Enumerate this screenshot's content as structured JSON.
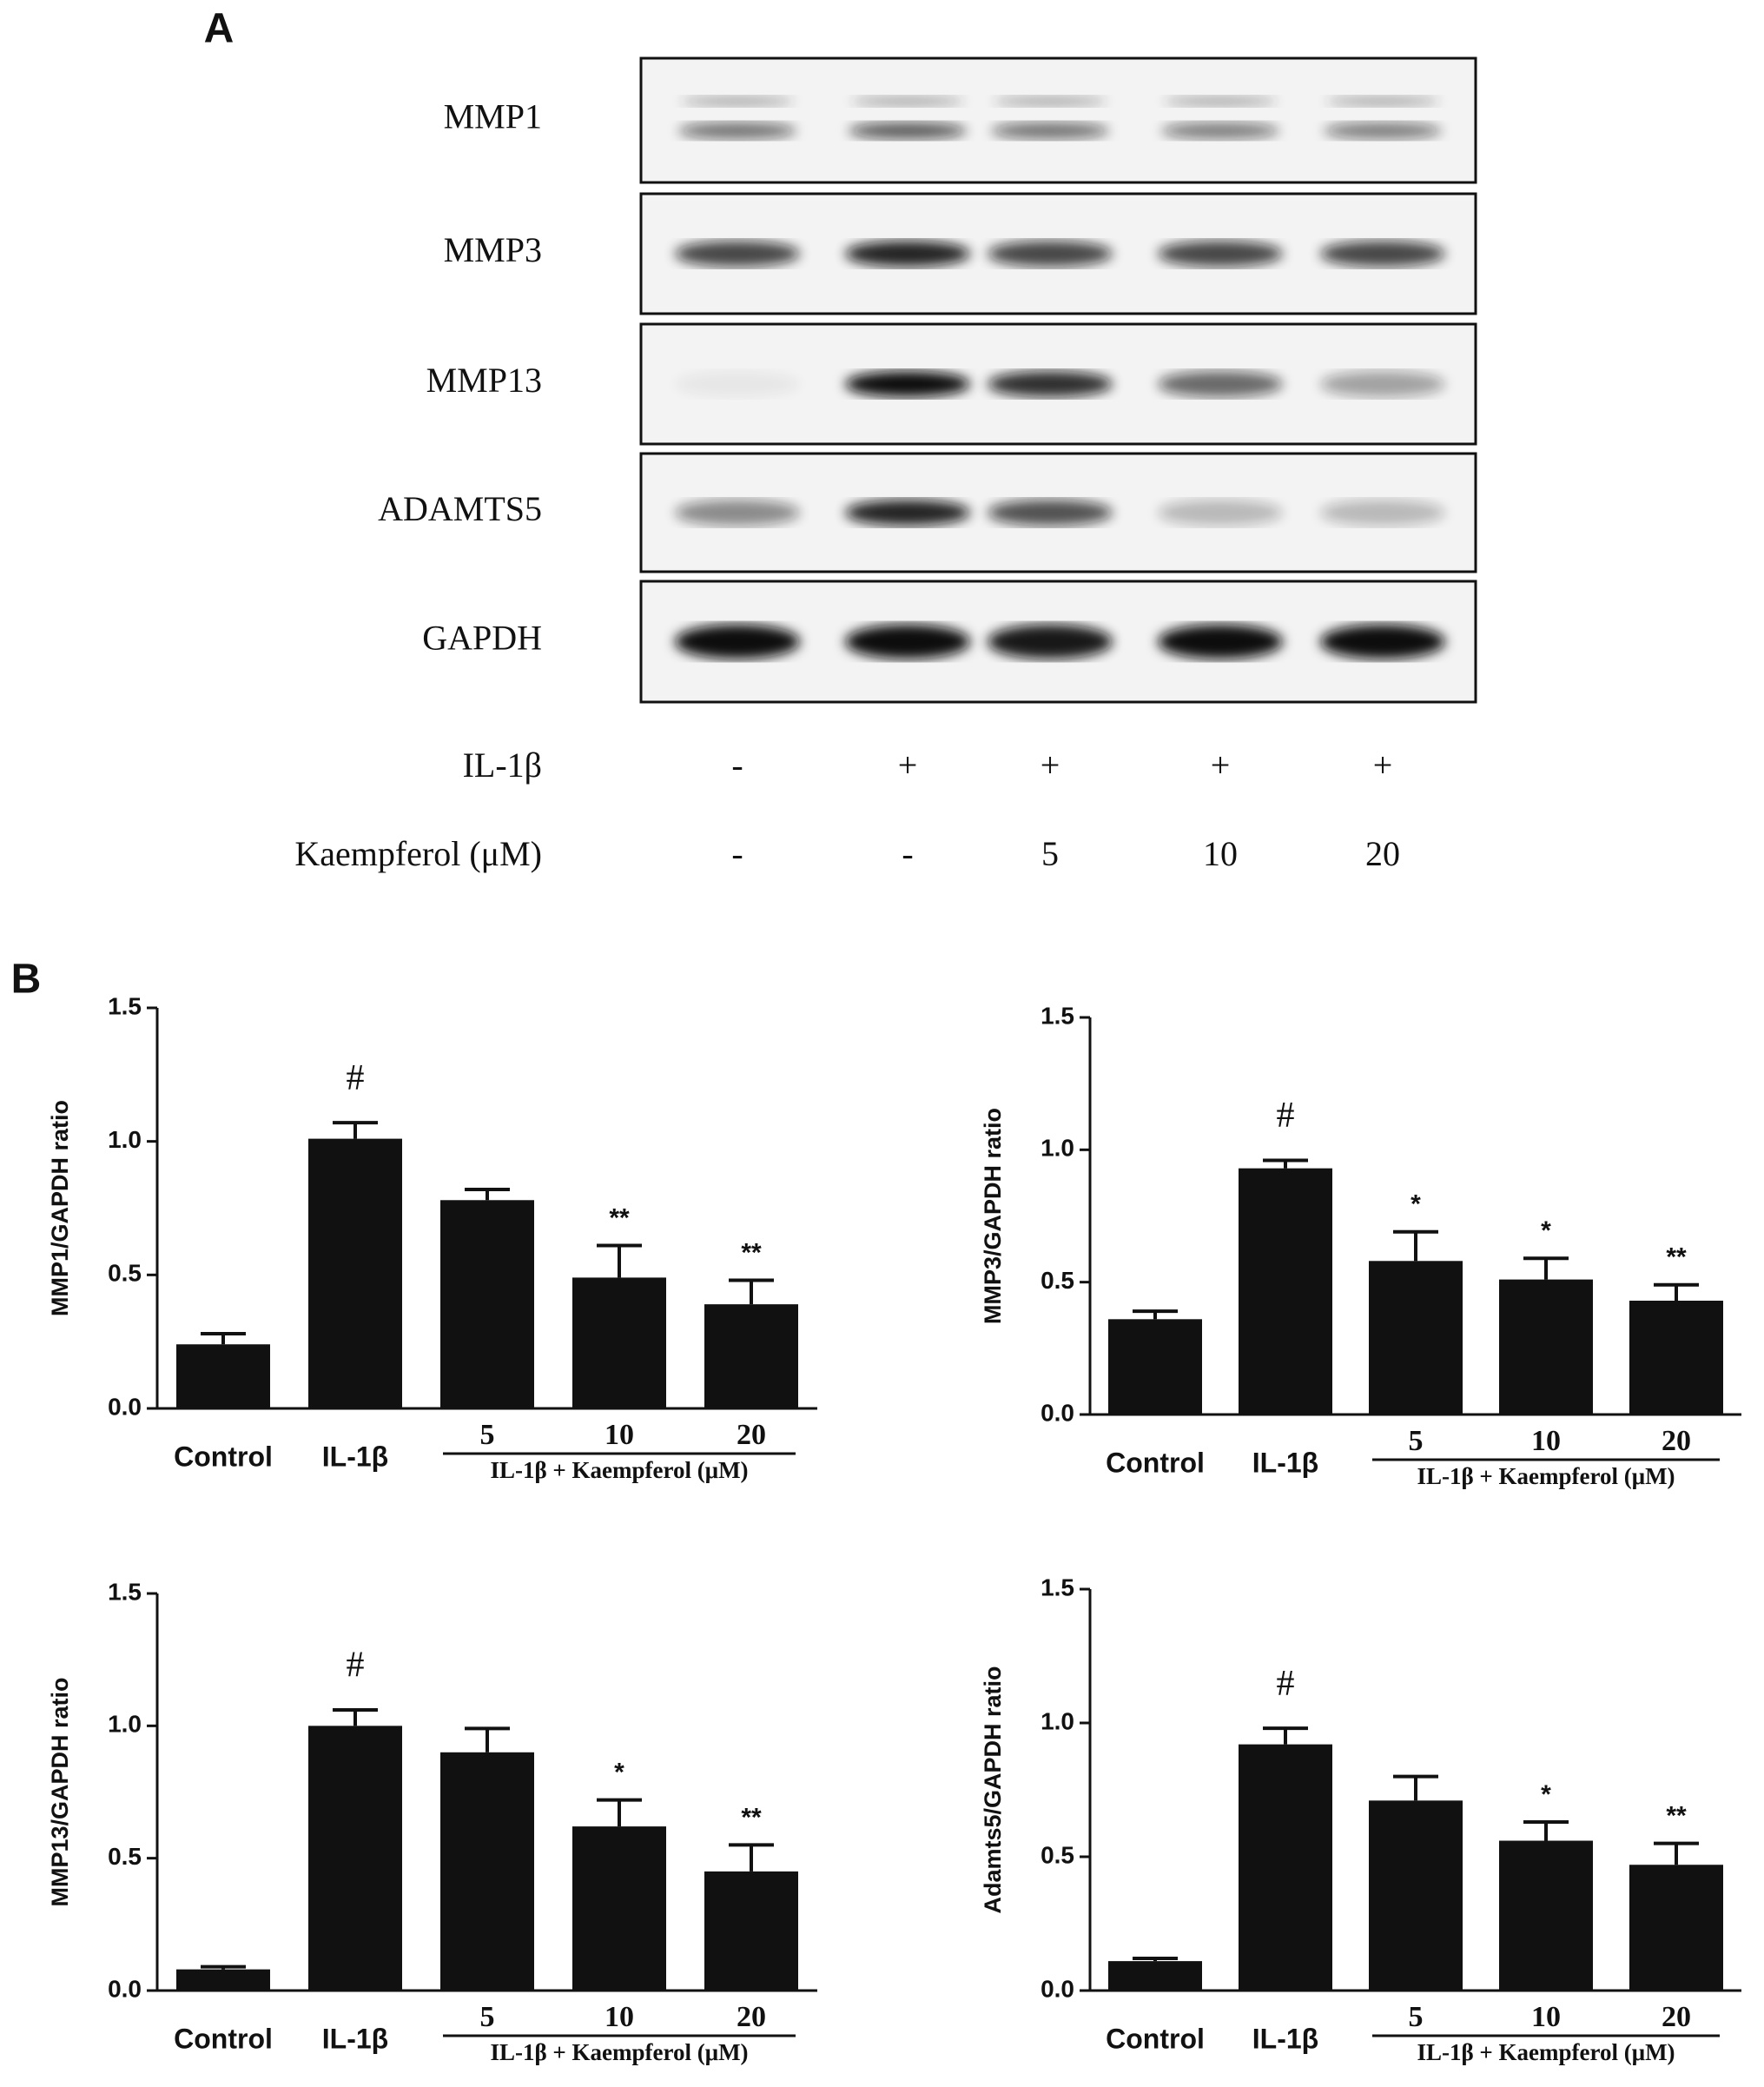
{
  "panel_a": {
    "label": "A",
    "proteins": [
      "MMP1",
      "MMP3",
      "MMP13",
      "ADAMTS5",
      "GAPDH"
    ],
    "treatments": [
      {
        "name": "IL-1β",
        "lanes": [
          "-",
          "+",
          "+",
          "+",
          "+"
        ]
      },
      {
        "name": "Kaempferol (μM)",
        "lanes": [
          "-",
          "-",
          "5",
          "10",
          "20"
        ]
      }
    ]
  },
  "panel_b_label": "B",
  "chart_data": [
    {
      "type": "bar",
      "ylabel": "MMP1/GAPDH ratio",
      "categories": [
        "Control",
        "IL-1β",
        "5",
        "10",
        "20"
      ],
      "group_label": "IL-1β + Kaempferol (μM)",
      "values": [
        0.24,
        1.01,
        0.78,
        0.49,
        0.39
      ],
      "errors": [
        0.04,
        0.06,
        0.04,
        0.12,
        0.09
      ],
      "annotations": [
        null,
        "#",
        null,
        "**",
        "**"
      ],
      "color": "#111111",
      "ylim": [
        0,
        1.5
      ],
      "yticks": [
        {
          "value": 0,
          "label": "0.0"
        },
        {
          "value": 0.5,
          "label": "0.5"
        },
        {
          "value": 1,
          "label": "1.0"
        },
        {
          "value": 1.5,
          "label": "1.5"
        }
      ]
    },
    {
      "type": "bar",
      "ylabel": "MMP3/GAPDH ratio",
      "categories": [
        "Control",
        "IL-1β",
        "5",
        "10",
        "20"
      ],
      "group_label": "IL-1β + Kaempferol (μM)",
      "values": [
        0.36,
        0.93,
        0.58,
        0.51,
        0.43
      ],
      "errors": [
        0.03,
        0.03,
        0.11,
        0.08,
        0.06
      ],
      "annotations": [
        null,
        "#",
        "*",
        "*",
        "**"
      ],
      "color": "#111111",
      "ylim": [
        0,
        1.5
      ],
      "yticks": [
        {
          "value": 0,
          "label": "0.0"
        },
        {
          "value": 0.5,
          "label": "0.5"
        },
        {
          "value": 1,
          "label": "1.0"
        },
        {
          "value": 1.5,
          "label": "1.5"
        }
      ]
    },
    {
      "type": "bar",
      "ylabel": "MMP13/GAPDH ratio",
      "categories": [
        "Control",
        "IL-1β",
        "5",
        "10",
        "20"
      ],
      "group_label": "IL-1β + Kaempferol (μM)",
      "values": [
        0.08,
        1.0,
        0.9,
        0.62,
        0.45
      ],
      "errors": [
        0.01,
        0.06,
        0.09,
        0.1,
        0.1
      ],
      "annotations": [
        null,
        "#",
        null,
        "*",
        "**"
      ],
      "color": "#111111",
      "ylim": [
        0,
        1.5
      ],
      "yticks": [
        {
          "value": 0,
          "label": "0.0"
        },
        {
          "value": 0.5,
          "label": "0.5"
        },
        {
          "value": 1,
          "label": "1.0"
        },
        {
          "value": 1.5,
          "label": "1.5"
        }
      ]
    },
    {
      "type": "bar",
      "ylabel": "Adamts5/GAPDH ratio",
      "categories": [
        "Control",
        "IL-1β",
        "5",
        "10",
        "20"
      ],
      "group_label": "IL-1β + Kaempferol (μM)",
      "values": [
        0.11,
        0.92,
        0.71,
        0.56,
        0.47
      ],
      "errors": [
        0.01,
        0.06,
        0.09,
        0.07,
        0.08
      ],
      "annotations": [
        null,
        "#",
        null,
        "*",
        "**"
      ],
      "color": "#111111",
      "ylim": [
        0,
        1.5
      ],
      "yticks": [
        {
          "value": 0,
          "label": "0.0"
        },
        {
          "value": 0.5,
          "label": "0.5"
        },
        {
          "value": 1,
          "label": "1.0"
        },
        {
          "value": 1.5,
          "label": "1.5"
        }
      ]
    }
  ]
}
